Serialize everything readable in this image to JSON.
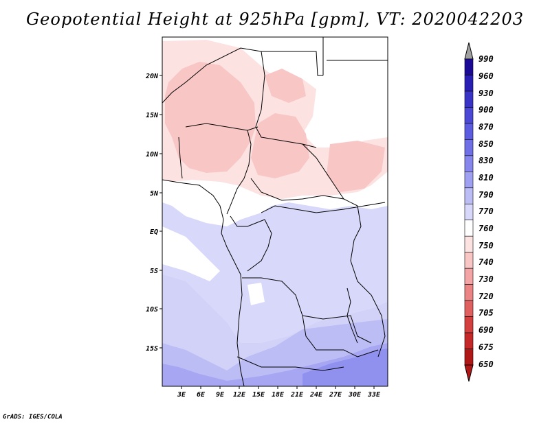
{
  "title": "Geopotential Height at 925hPa [gpm], VT: 2020042203",
  "credit": "GrADS: IGES/COLA",
  "map": {
    "lat_labels": [
      "20N",
      "15N",
      "10N",
      "5N",
      "EQ",
      "5S",
      "10S",
      "15S"
    ],
    "lon_labels": [
      "3E",
      "6E",
      "9E",
      "12E",
      "15E",
      "18E",
      "21E",
      "24E",
      "27E",
      "30E",
      "33E"
    ]
  },
  "colorbar": {
    "levels": [
      "990",
      "960",
      "930",
      "900",
      "870",
      "850",
      "830",
      "810",
      "790",
      "770",
      "760",
      "750",
      "740",
      "730",
      "720",
      "705",
      "690",
      "675",
      "650"
    ],
    "colors": [
      "#1a0a96",
      "#2a1fb4",
      "#3a34c6",
      "#4a48d4",
      "#5c5ce0",
      "#7070e6",
      "#8686ec",
      "#a0a0f2",
      "#bdbdf6",
      "#d8d8fa",
      "#ffffff",
      "#fde2e2",
      "#f9c6c6",
      "#f3a4a4",
      "#eb8484",
      "#e06060",
      "#d44040",
      "#c42828",
      "#b01818"
    ],
    "top_arrow_color": "#a0a0a0",
    "bottom_arrow_color": "#b01818"
  }
}
